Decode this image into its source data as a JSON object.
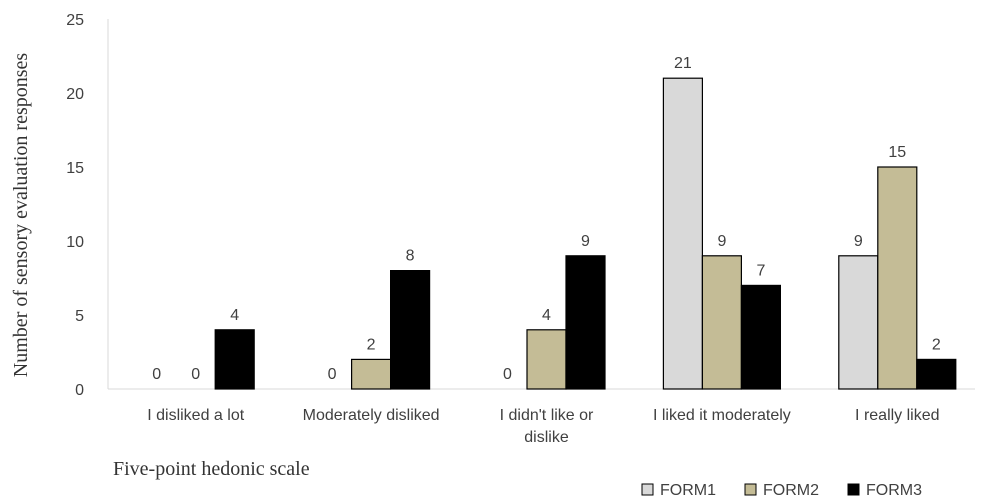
{
  "chart_data": {
    "type": "bar",
    "xlabel": "Five-point hedonic scale",
    "ylabel": "Number of sensory evaluation responses",
    "ylim": [
      0,
      25
    ],
    "yticks": [
      "0",
      "5",
      "10",
      "15",
      "20",
      "25"
    ],
    "categories": [
      [
        "I disliked a lot"
      ],
      [
        "Moderately disliked"
      ],
      [
        "I didn't like or",
        "dislike"
      ],
      [
        "I liked it moderately"
      ],
      [
        "I really liked"
      ]
    ],
    "series": [
      {
        "name": "FORM1",
        "color": "#d9d9d9",
        "values": [
          0,
          0,
          0,
          21,
          9
        ]
      },
      {
        "name": "FORM2",
        "color": "#c4bc96",
        "values": [
          0,
          2,
          4,
          9,
          15
        ]
      },
      {
        "name": "FORM3",
        "color": "#000000",
        "values": [
          4,
          8,
          9,
          7,
          2
        ]
      }
    ],
    "grid": false,
    "legend": "bottom-right"
  }
}
